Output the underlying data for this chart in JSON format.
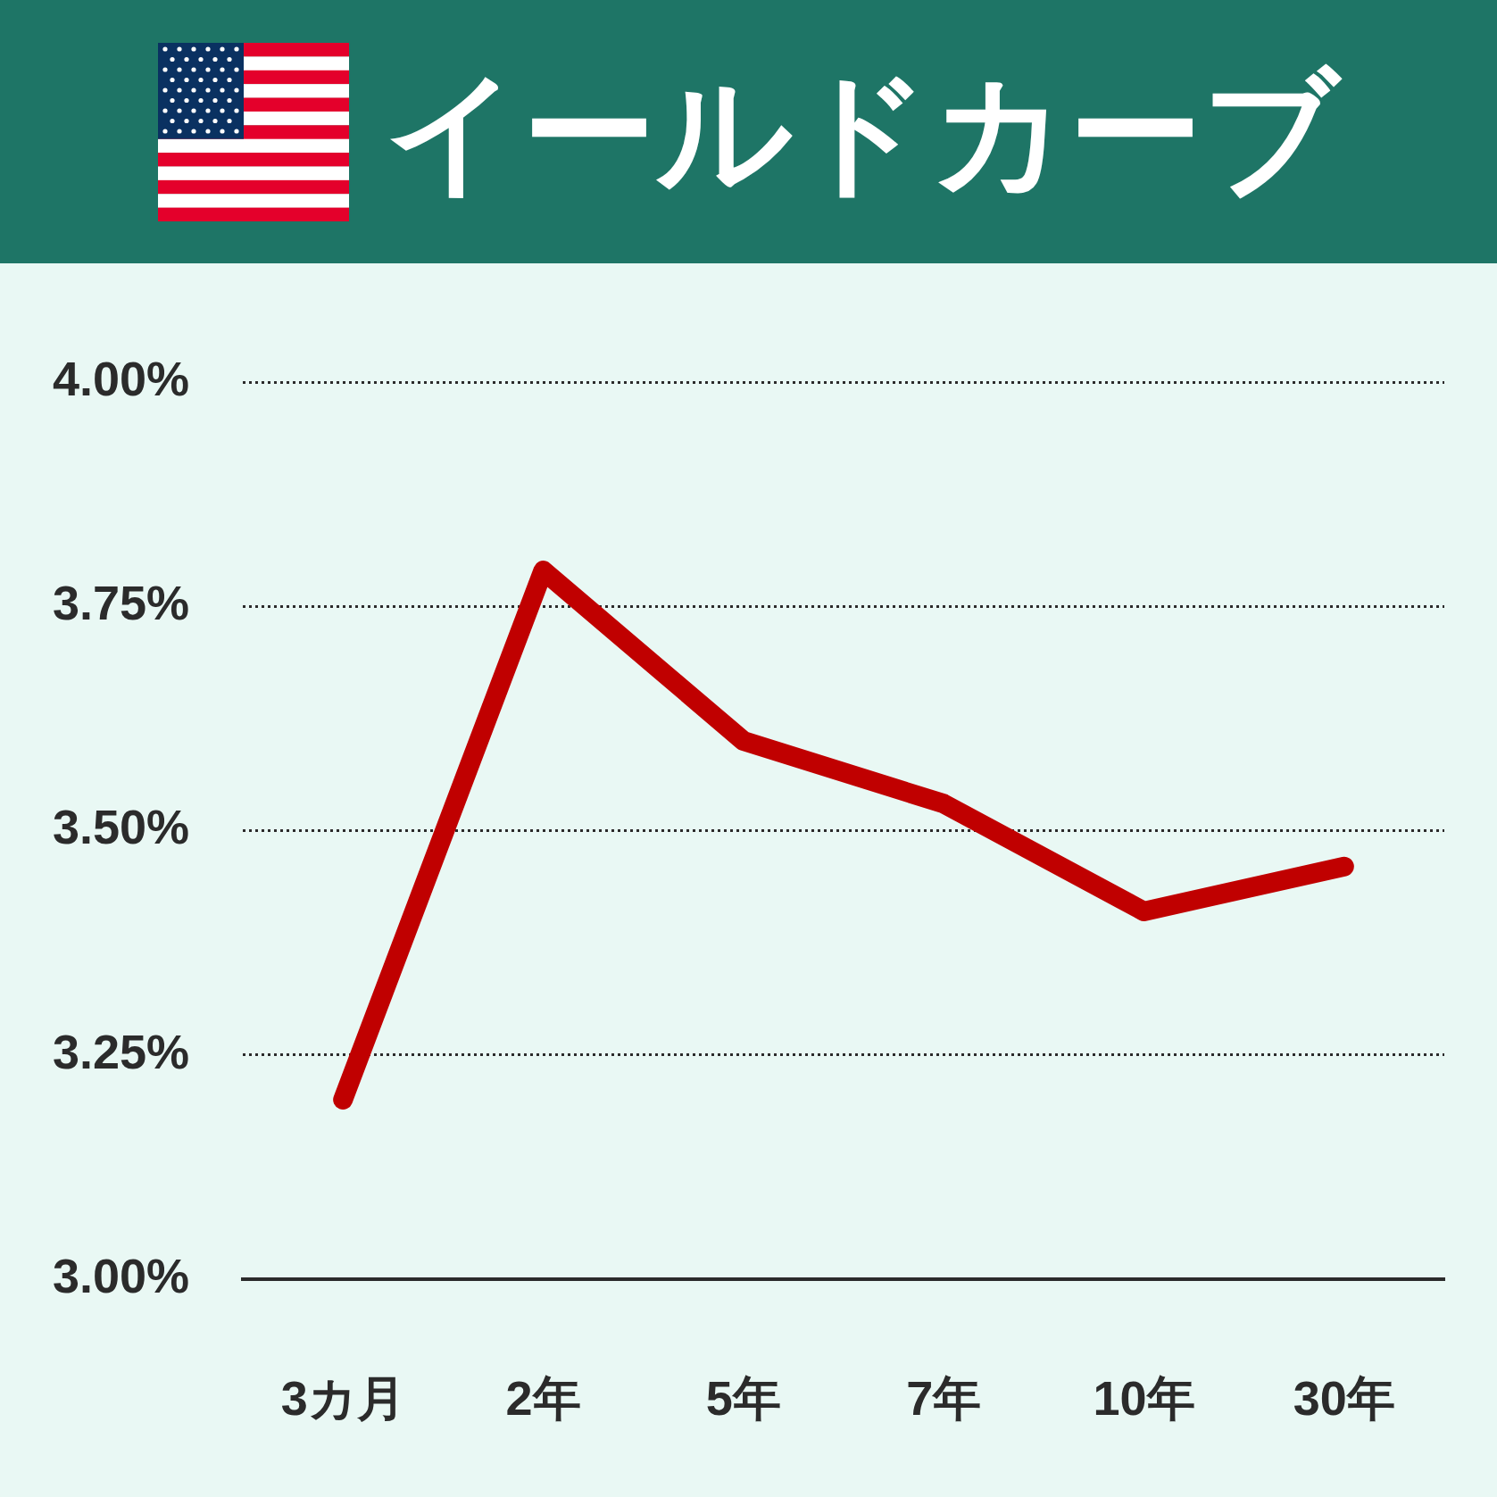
{
  "chart_data": {
    "type": "line",
    "title": "イールドカーブ",
    "categories": [
      "3カ月",
      "2年",
      "5年",
      "7年",
      "10年",
      "30年"
    ],
    "series": [
      {
        "color": "#c00000",
        "values": [
          3.2,
          3.79,
          3.6,
          3.53,
          3.41,
          3.46
        ]
      }
    ],
    "ylim": [
      3,
      4
    ],
    "yticks": [
      {
        "value": 3,
        "label": "3.00%"
      },
      {
        "value": 3.25,
        "label": "3.25%"
      },
      {
        "value": 3.5,
        "label": "3.50%"
      },
      {
        "value": 3.75,
        "label": "3.75%"
      },
      {
        "value": 4,
        "label": "4.00%"
      }
    ],
    "grid": "y",
    "legend": false,
    "marker": "none",
    "line_style": "solid"
  }
}
